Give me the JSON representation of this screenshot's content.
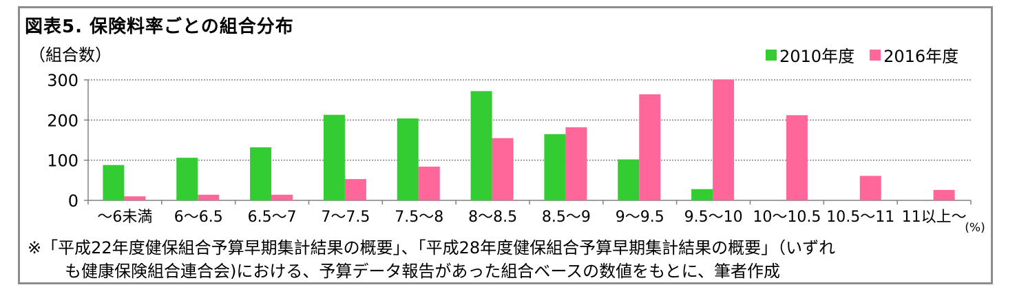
{
  "title": "図表5.  保険料率ごとの組合分布",
  "unit_label": "（組合数）",
  "x_unit": "(%)",
  "note": {
    "line1": "※「平成22年度健保組合予算早期集計結果の概要」、「平成28年度健保組合予算早期集計結果の概要」（いずれ",
    "line2": "も健康保険組合連合会)における、予算データ報告があった組合ベースの数値をもとに、筆者作成"
  },
  "colors": {
    "s2010": "#33cc33",
    "s2016": "#ff6699",
    "grid": "#808080",
    "axis": "#808080"
  },
  "chart_data": {
    "type": "bar",
    "title": "図表5.  保険料率ごとの組合分布",
    "ylabel": "（組合数）",
    "xlabel": "(%)",
    "ylim": [
      0,
      300
    ],
    "yticks": [
      0,
      100,
      200,
      300
    ],
    "grid": true,
    "legend_position": "top-right",
    "categories": [
      "～6未満",
      "6～6.5",
      "6.5～7",
      "7～7.5",
      "7.5～8",
      "8～8.5",
      "8.5～9",
      "9～9.5",
      "9.5～10",
      "10～10.5",
      "10.5～11",
      "11以上～"
    ],
    "series": [
      {
        "name": "2010年度",
        "values": [
          88,
          106,
          132,
          213,
          204,
          272,
          165,
          102,
          28,
          0,
          0,
          0
        ]
      },
      {
        "name": "2016年度",
        "values": [
          10,
          14,
          14,
          53,
          84,
          155,
          182,
          264,
          301,
          212,
          61,
          26
        ]
      }
    ]
  }
}
